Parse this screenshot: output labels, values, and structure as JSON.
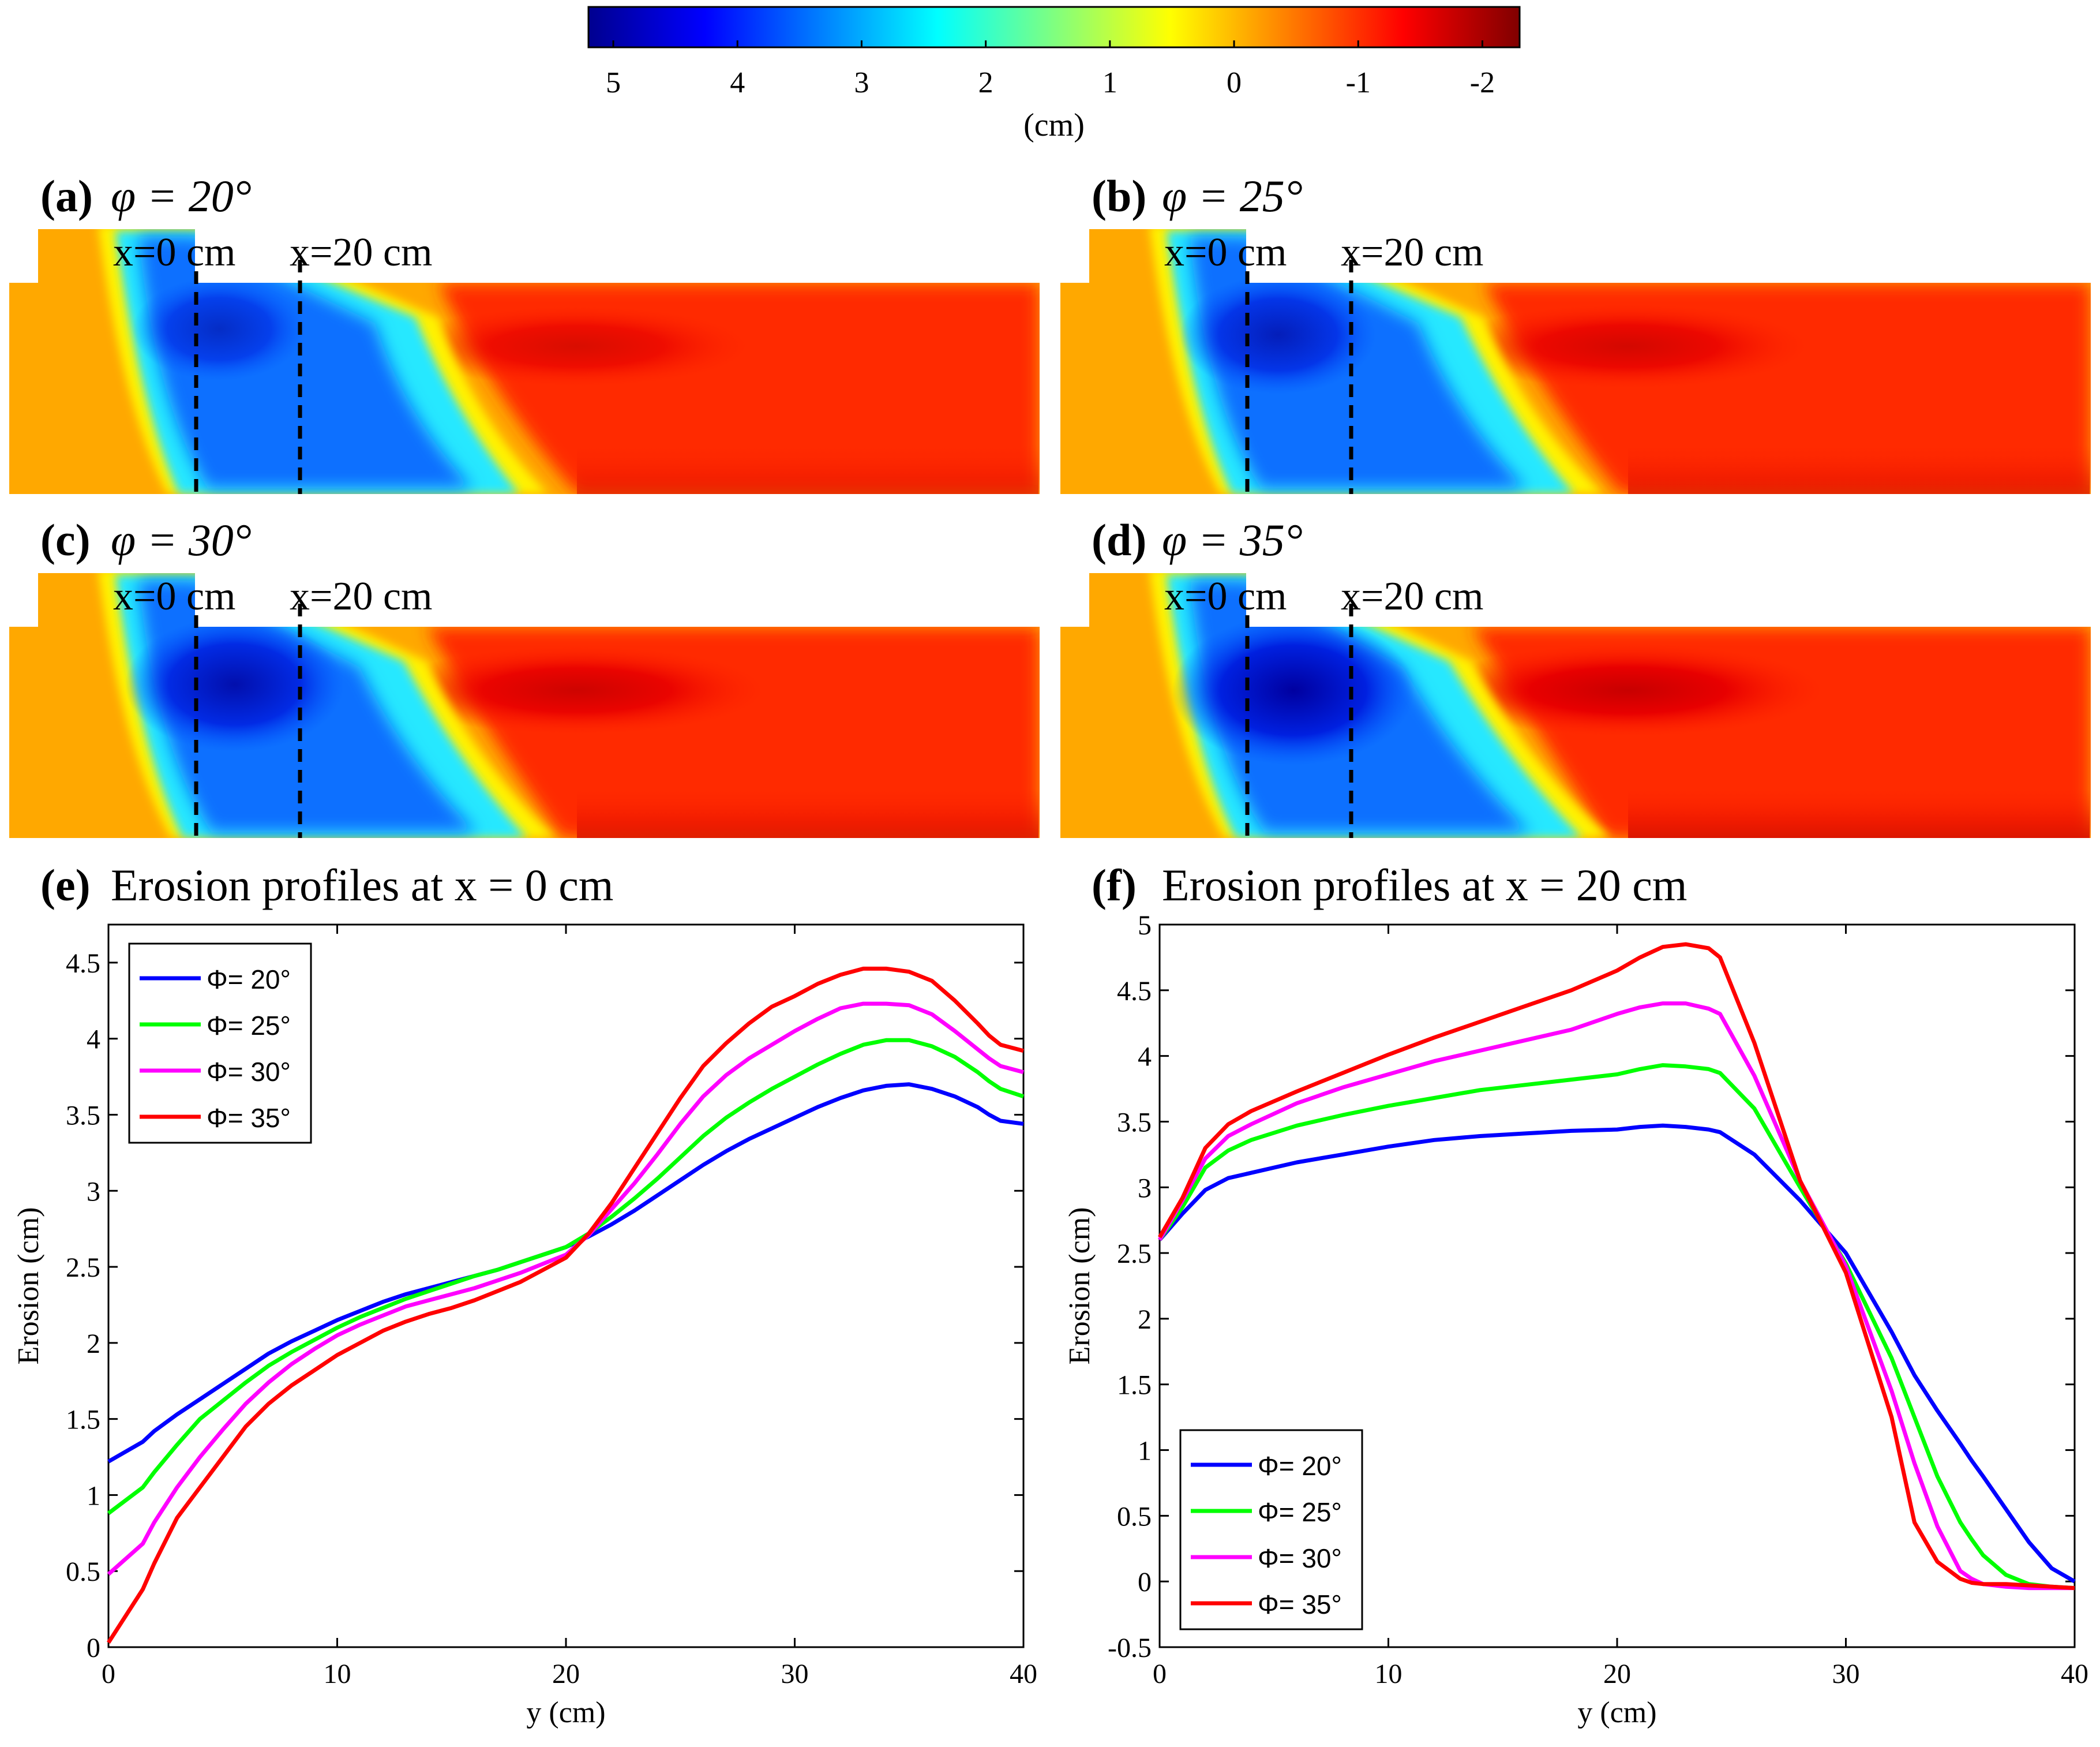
{
  "colorbar": {
    "ticks": [
      "5",
      "4",
      "3",
      "2",
      "1",
      "0",
      "-1",
      "-2"
    ],
    "tick_values": [
      5,
      4,
      3,
      2,
      1,
      0,
      -1,
      -2
    ],
    "range": [
      5.2,
      -2.3
    ],
    "unit": "(cm)",
    "colormap": "jet"
  },
  "maps": [
    {
      "label": "(a)",
      "title": "φ = 20°",
      "phi": 20,
      "marker_labels": {
        "x0": "x=0 cm",
        "x20": "x=20 cm"
      }
    },
    {
      "label": "(b)",
      "title": "φ = 25°",
      "phi": 25,
      "marker_labels": {
        "x0": "x=0 cm",
        "x20": "x=20 cm"
      }
    },
    {
      "label": "(c)",
      "title": "φ = 30°",
      "phi": 30,
      "marker_labels": {
        "x0": "x=0 cm",
        "x20": "x=20 cm"
      }
    },
    {
      "label": "(d)",
      "title": "φ = 35°",
      "phi": 35,
      "marker_labels": {
        "x0": "x=0 cm",
        "x20": "x=20 cm"
      }
    }
  ],
  "chart_data": [
    {
      "type": "line",
      "label": "(e)",
      "title": "Erosion profiles at x = 0 cm",
      "xlabel": "y (cm)",
      "ylabel": "Erosion (cm)",
      "xlim": [
        0,
        40
      ],
      "ylim": [
        0,
        4.75
      ],
      "xticks": [
        "0",
        "10",
        "20",
        "30",
        "40"
      ],
      "yticks": [
        "0",
        "0.5",
        "1",
        "1.5",
        "2",
        "2.5",
        "3",
        "3.5",
        "4",
        "4.5"
      ],
      "legend_position": "top-left",
      "x": [
        0,
        1.5,
        2,
        3,
        4,
        5,
        6,
        7,
        8,
        9,
        10,
        11,
        12,
        13,
        14,
        15,
        16,
        17,
        18,
        19,
        20,
        21,
        22,
        23,
        24,
        25,
        26,
        27,
        28,
        29,
        30,
        31,
        32,
        33,
        34,
        35,
        36,
        37,
        38,
        38.5,
        39,
        40
      ],
      "series": [
        {
          "name": "Φ= 20°",
          "color": "#0000ff",
          "values": [
            1.22,
            1.35,
            1.42,
            1.53,
            1.63,
            1.73,
            1.83,
            1.93,
            2.01,
            2.08,
            2.15,
            2.21,
            2.27,
            2.32,
            2.36,
            2.4,
            2.44,
            2.48,
            2.53,
            2.58,
            2.63,
            2.7,
            2.78,
            2.87,
            2.97,
            3.07,
            3.17,
            3.26,
            3.34,
            3.41,
            3.48,
            3.55,
            3.61,
            3.66,
            3.69,
            3.7,
            3.67,
            3.62,
            3.55,
            3.5,
            3.46,
            3.44
          ]
        },
        {
          "name": "Φ= 25°",
          "color": "#00ff00",
          "values": [
            0.88,
            1.05,
            1.15,
            1.33,
            1.5,
            1.62,
            1.74,
            1.85,
            1.94,
            2.02,
            2.1,
            2.17,
            2.23,
            2.29,
            2.34,
            2.39,
            2.44,
            2.48,
            2.53,
            2.58,
            2.63,
            2.72,
            2.83,
            2.95,
            3.08,
            3.22,
            3.36,
            3.48,
            3.58,
            3.67,
            3.75,
            3.83,
            3.9,
            3.96,
            3.99,
            3.99,
            3.95,
            3.88,
            3.78,
            3.72,
            3.67,
            3.62
          ]
        },
        {
          "name": "Φ= 30°",
          "color": "#ff00ff",
          "values": [
            0.48,
            0.68,
            0.82,
            1.05,
            1.25,
            1.43,
            1.6,
            1.74,
            1.86,
            1.96,
            2.05,
            2.12,
            2.18,
            2.24,
            2.28,
            2.32,
            2.36,
            2.41,
            2.46,
            2.52,
            2.58,
            2.71,
            2.88,
            3.05,
            3.24,
            3.44,
            3.62,
            3.76,
            3.87,
            3.96,
            4.05,
            4.13,
            4.2,
            4.23,
            4.23,
            4.22,
            4.16,
            4.05,
            3.93,
            3.87,
            3.82,
            3.78
          ]
        },
        {
          "name": "Φ= 35°",
          "color": "#ff0000",
          "values": [
            0.03,
            0.38,
            0.55,
            0.85,
            1.05,
            1.25,
            1.45,
            1.6,
            1.72,
            1.82,
            1.92,
            2.0,
            2.08,
            2.14,
            2.19,
            2.23,
            2.28,
            2.34,
            2.4,
            2.48,
            2.56,
            2.72,
            2.92,
            3.15,
            3.38,
            3.61,
            3.82,
            3.97,
            4.1,
            4.21,
            4.28,
            4.36,
            4.42,
            4.46,
            4.46,
            4.44,
            4.38,
            4.25,
            4.1,
            4.02,
            3.96,
            3.92
          ]
        }
      ]
    },
    {
      "type": "line",
      "label": "(f)",
      "title": "Erosion profiles at x = 20 cm",
      "xlabel": "y (cm)",
      "ylabel": "Erosion (cm)",
      "xlim": [
        0,
        40
      ],
      "ylim": [
        -0.5,
        5
      ],
      "xticks": [
        "0",
        "10",
        "20",
        "30",
        "40"
      ],
      "yticks": [
        "-0.5",
        "0",
        "0.5",
        "1",
        "1.5",
        "2",
        "2.5",
        "3",
        "3.5",
        "4",
        "4.5",
        "5"
      ],
      "legend_position": "bottom-left",
      "x": [
        0,
        1,
        2,
        3,
        4,
        6,
        8,
        10,
        12,
        14,
        16,
        18,
        20,
        21,
        22,
        23,
        24,
        24.5,
        26,
        28,
        30,
        32,
        33,
        34,
        35,
        35.5,
        36,
        37,
        38,
        39,
        40
      ],
      "series": [
        {
          "name": "Φ= 20°",
          "color": "#0000ff",
          "values": [
            2.6,
            2.8,
            2.98,
            3.07,
            3.11,
            3.19,
            3.25,
            3.31,
            3.36,
            3.39,
            3.41,
            3.43,
            3.44,
            3.46,
            3.47,
            3.46,
            3.44,
            3.42,
            3.25,
            2.9,
            2.5,
            1.9,
            1.57,
            1.3,
            1.05,
            0.92,
            0.8,
            0.55,
            0.3,
            0.1,
            0.0
          ]
        },
        {
          "name": "Φ= 25°",
          "color": "#00ff00",
          "values": [
            2.6,
            2.85,
            3.15,
            3.28,
            3.36,
            3.47,
            3.55,
            3.62,
            3.68,
            3.74,
            3.78,
            3.82,
            3.86,
            3.9,
            3.93,
            3.92,
            3.9,
            3.87,
            3.6,
            3.0,
            2.42,
            1.7,
            1.25,
            0.8,
            0.45,
            0.32,
            0.2,
            0.05,
            -0.02,
            -0.04,
            -0.05
          ]
        },
        {
          "name": "Φ= 30°",
          "color": "#ff00ff",
          "values": [
            2.6,
            2.9,
            3.22,
            3.39,
            3.48,
            3.64,
            3.76,
            3.86,
            3.96,
            4.04,
            4.12,
            4.2,
            4.32,
            4.37,
            4.4,
            4.4,
            4.36,
            4.32,
            3.85,
            3.05,
            2.4,
            1.45,
            0.9,
            0.42,
            0.08,
            0.02,
            -0.02,
            -0.04,
            -0.05,
            -0.05,
            -0.05
          ]
        },
        {
          "name": "Φ= 35°",
          "color": "#ff0000",
          "values": [
            2.62,
            2.92,
            3.3,
            3.48,
            3.58,
            3.73,
            3.87,
            4.01,
            4.14,
            4.26,
            4.38,
            4.5,
            4.65,
            4.75,
            4.83,
            4.85,
            4.82,
            4.75,
            4.1,
            3.05,
            2.35,
            1.25,
            0.45,
            0.15,
            0.02,
            -0.01,
            -0.02,
            -0.02,
            -0.03,
            -0.04,
            -0.05
          ]
        }
      ]
    }
  ]
}
